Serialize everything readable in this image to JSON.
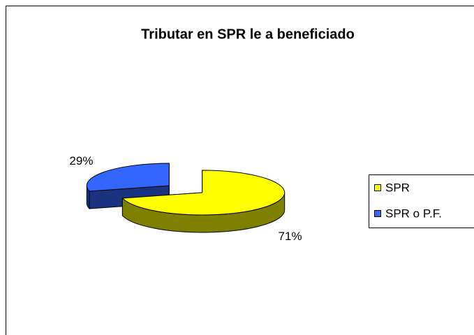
{
  "chart_data": {
    "type": "pie3d",
    "title": "Tributar en SPR le a beneficiado",
    "categories": [
      "SPR",
      "SPR o P.F."
    ],
    "values": [
      71,
      29
    ],
    "value_labels": [
      "71%",
      "29%"
    ],
    "colors": [
      "#ffff00",
      "#3366ff"
    ],
    "legend": "right"
  }
}
